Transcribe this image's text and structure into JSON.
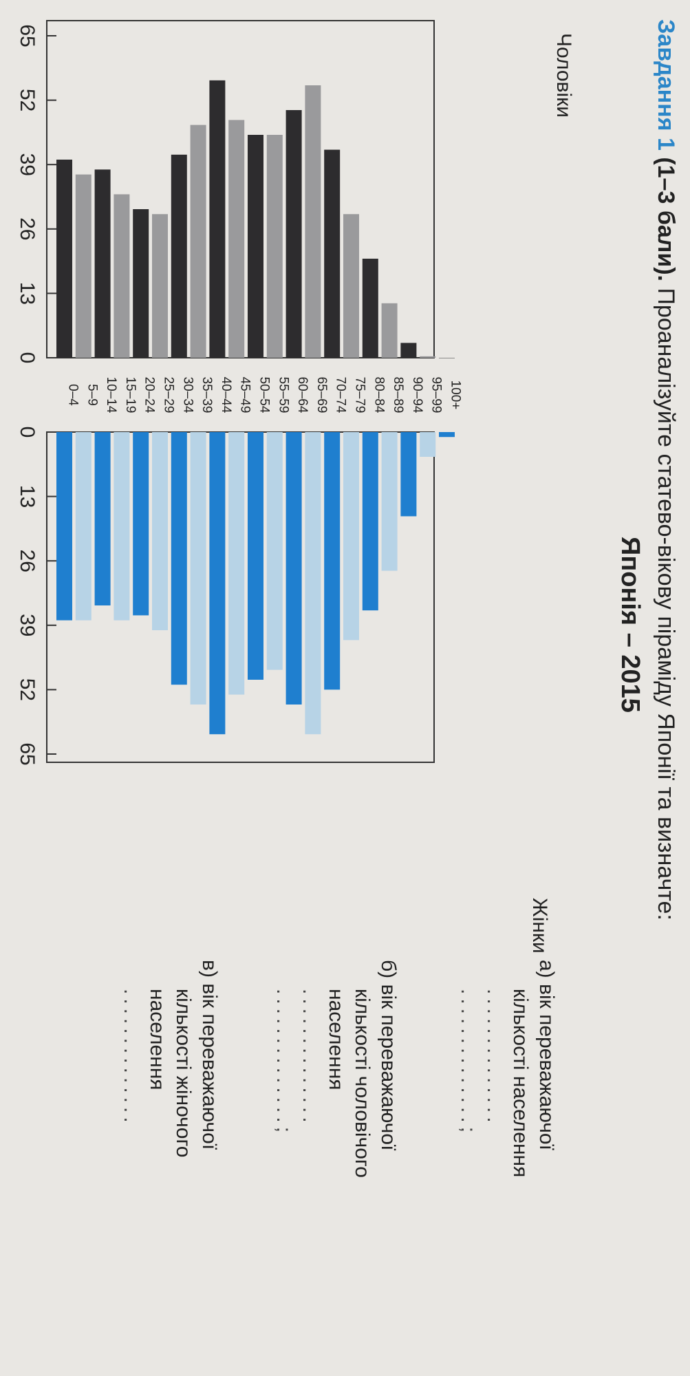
{
  "header": {
    "task_label": "Завдання 1",
    "points": "(1–3 бали).",
    "instruction": "Проаналізуйте статево-вікову піраміду Японії та визначте:"
  },
  "questions": [
    {
      "letter": "а)",
      "line1": "вік переважаючої",
      "line2": "кількості населення",
      "line3": "",
      "blanks": [
        "..............",
        "..............;"
      ]
    },
    {
      "letter": "б)",
      "line1": "вік переважаючої",
      "line2": "кількості чоловічого",
      "line3": "населення",
      "blanks": [
        "..............",
        "..............;"
      ]
    },
    {
      "letter": "в)",
      "line1": "вік переважаючої",
      "line2": "кількості жіночого",
      "line3": "населення",
      "blanks": [
        ".............."
      ]
    }
  ],
  "colors": {
    "male_dark": "#2d2c2e",
    "male_light": "#9a9a9c",
    "female_dark": "#1f7fcf",
    "female_light": "#b7d3e6",
    "task_blue": "#2b86c8"
  },
  "chart_data": {
    "type": "bar",
    "title": "Японія – 2015",
    "categories": [
      "0–4",
      "5–9",
      "10–14",
      "15–19",
      "20–24",
      "25–29",
      "30–34",
      "35–39",
      "40–44",
      "45–49",
      "50–54",
      "55–59",
      "60–64",
      "65–69",
      "70–74",
      "75–79",
      "80–84",
      "85–89",
      "90–94",
      "95–99",
      "100+"
    ],
    "series": [
      {
        "name": "Чоловіки",
        "values": [
          40,
          37,
          38,
          33,
          30,
          29,
          41,
          47,
          56,
          48,
          45,
          45,
          50,
          55,
          42,
          29,
          20,
          11,
          3,
          0.3,
          0
        ]
      },
      {
        "name": "Жінки",
        "values": [
          38,
          38,
          35,
          38,
          37,
          40,
          51,
          55,
          61,
          53,
          50,
          48,
          55,
          61,
          52,
          42,
          36,
          28,
          17,
          5,
          1
        ]
      }
    ],
    "xticks": [
      0,
      13,
      26,
      39,
      52,
      65
    ],
    "xlim": [
      0,
      65
    ],
    "orientation": "horizontal population pyramid"
  }
}
